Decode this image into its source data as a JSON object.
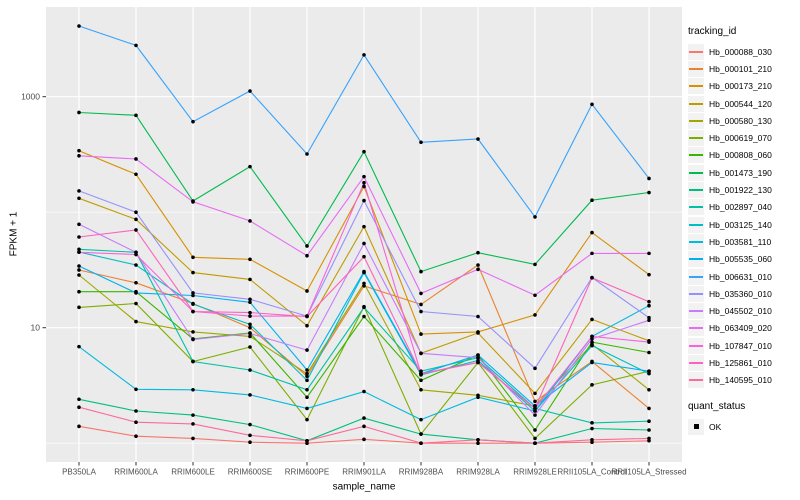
{
  "chart_data": {
    "type": "line",
    "title": "",
    "xlabel": "sample_name",
    "ylabel": "FPKM + 1",
    "y_scale": "log10",
    "ylim": [
      1,
      6000
    ],
    "grid": "on",
    "legend_position": "right",
    "legend_title": "tracking_id",
    "y_ticks": [
      {
        "value": 1000,
        "label": "1000"
      },
      {
        "value": 10,
        "label": "10"
      }
    ],
    "y_minor_ticks": [
      100,
      1
    ],
    "categories": [
      "PB350LA",
      "RRIM600LA",
      "RRIM600LE",
      "RRIM600SE",
      "RRIM600PE",
      "RRIM901LA",
      "RRIM928BA",
      "RRIM928LA",
      "RRIM928LE",
      "RRII105LA_Control",
      "RRII105LA_Stressed"
    ],
    "point_marker": {
      "color": "#000000",
      "legend_title": "quant_status",
      "items": [
        "OK"
      ]
    },
    "series": [
      {
        "name": "Hb_000088_030",
        "color": "#F8766D",
        "values": [
          1.4,
          1.15,
          1.1,
          1.02,
          1.0,
          1.08,
          1.0,
          1.0,
          1.0,
          1.02,
          1.05
        ]
      },
      {
        "name": "Hb_000101_210",
        "color": "#EA8331",
        "values": [
          31.6,
          24.5,
          16.2,
          10.0,
          3.8,
          23.0,
          15.9,
          34.9,
          2.3,
          5.1,
          2.0
        ]
      },
      {
        "name": "Hb_000173_210",
        "color": "#D89000",
        "values": [
          341,
          213,
          40.7,
          39.1,
          20.8,
          167,
          8.8,
          9.2,
          12.9,
          66.6,
          28.8
        ]
      },
      {
        "name": "Hb_000544_120",
        "color": "#C09B00",
        "values": [
          132,
          86.7,
          30.0,
          26.2,
          10.4,
          75.0,
          6.0,
          9.0,
          2.7,
          11.8,
          7.7
        ]
      },
      {
        "name": "Hb_000580_130",
        "color": "#A3A500",
        "values": [
          28.6,
          11.3,
          9.2,
          8.4,
          4.0,
          24.2,
          2.9,
          2.6,
          2.1,
          7.2,
          2.9
        ]
      },
      {
        "name": "Hb_000619_070",
        "color": "#7CAE00",
        "values": [
          15.0,
          16.2,
          5.1,
          6.8,
          1.6,
          15.2,
          1.2,
          5.0,
          1.1,
          3.2,
          4.2
        ]
      },
      {
        "name": "Hb_000808_060",
        "color": "#39B600",
        "values": [
          20.5,
          20.5,
          8.0,
          9.0,
          2.5,
          12.5,
          3.5,
          5.8,
          1.3,
          7.5,
          6.1
        ]
      },
      {
        "name": "Hb_001473_190",
        "color": "#00BB4E",
        "values": [
          730,
          690,
          125,
          248,
          51,
          334,
          30.6,
          44.6,
          35.3,
          127,
          148
        ]
      },
      {
        "name": "Hb_001922_130",
        "color": "#00BF7D",
        "values": [
          2.4,
          1.9,
          1.75,
          1.45,
          1.05,
          1.65,
          1.2,
          1.07,
          1.0,
          1.34,
          1.3
        ]
      },
      {
        "name": "Hb_002897_040",
        "color": "#00C1A3",
        "values": [
          47.7,
          45.0,
          5.1,
          4.3,
          2.9,
          15.0,
          4.2,
          5.5,
          2.0,
          1.5,
          1.55
        ]
      },
      {
        "name": "Hb_003125_140",
        "color": "#00BFC4",
        "values": [
          45.2,
          34.9,
          16.0,
          10.7,
          3.5,
          30.0,
          3.9,
          5.2,
          1.9,
          7.0,
          4.0
        ]
      },
      {
        "name": "Hb_003581_110",
        "color": "#00BAE0",
        "values": [
          6.85,
          2.93,
          2.9,
          2.62,
          2.0,
          2.8,
          1.6,
          2.5,
          1.9,
          8.4,
          15.5
        ]
      },
      {
        "name": "Hb_005535_060",
        "color": "#00B0F6",
        "values": [
          34.2,
          20.0,
          19.0,
          16.6,
          4.3,
          30.6,
          4.0,
          5.8,
          2.1,
          5.0,
          4.2
        ]
      },
      {
        "name": "Hb_006631_010",
        "color": "#35A2FF",
        "values": [
          4090,
          2780,
          608,
          1120,
          319,
          2300,
          403,
          430,
          91,
          860,
          196
        ]
      },
      {
        "name": "Hb_035360_010",
        "color": "#9590FF",
        "values": [
          153,
          100,
          20.0,
          17.6,
          12.6,
          126,
          13.8,
          12.5,
          4.45,
          27.2,
          12.2
        ]
      },
      {
        "name": "Hb_045502_010",
        "color": "#C77CFF",
        "values": [
          78.6,
          45.0,
          7.9,
          8.9,
          6.4,
          53.6,
          6.0,
          5.5,
          1.75,
          8.0,
          11.6
        ]
      },
      {
        "name": "Hb_063409_020",
        "color": "#E76BF3",
        "values": [
          308,
          289,
          123,
          84,
          42,
          203,
          19.8,
          32,
          19.1,
          44,
          44
        ]
      },
      {
        "name": "Hb_107847_010",
        "color": "#FA62DB",
        "values": [
          45.0,
          43.0,
          13.8,
          12.6,
          12.6,
          180,
          4.0,
          5.0,
          2.0,
          8.4,
          7.5
        ]
      },
      {
        "name": "Hb_125861_010",
        "color": "#FF62BC",
        "values": [
          61,
          70.2,
          13.8,
          13.5,
          12.5,
          41.2,
          4.0,
          5.0,
          2.0,
          27.0,
          16.8
        ]
      },
      {
        "name": "Hb_140595_010",
        "color": "#FF6A98",
        "values": [
          2.05,
          1.52,
          1.47,
          1.17,
          1.05,
          1.4,
          1.0,
          1.07,
          1.0,
          1.07,
          1.1
        ]
      }
    ]
  },
  "style_colors": {
    "panel_background": "#EBEBEB",
    "gridline": "#FFFFFF",
    "legend_key_background": "#F2F2F2",
    "tick_label_text": "#4D4D4D",
    "axis_title_text": "#000000",
    "tick_mark": "#333333"
  }
}
